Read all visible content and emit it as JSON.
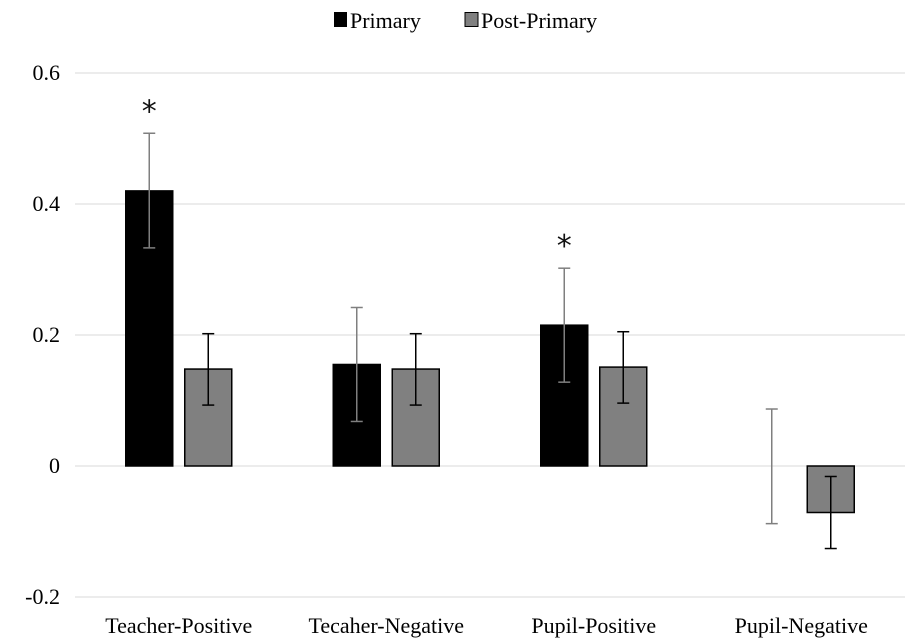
{
  "chart_data": {
    "type": "bar",
    "title": "",
    "xlabel": "",
    "ylabel": "",
    "categories": [
      "Teacher-Positive",
      "Tecaher-Negative",
      "Pupil-Positive",
      "Pupil-Negative"
    ],
    "series": [
      {
        "name": "Primary",
        "color": "#000000",
        "values": [
          0.42,
          0.155,
          0.215,
          0.0
        ],
        "error_low": [
          0.333,
          0.068,
          0.128,
          -0.088
        ],
        "error_high": [
          0.508,
          0.242,
          0.302,
          0.087
        ]
      },
      {
        "name": "Post-Primary",
        "color": "#808080",
        "values": [
          0.148,
          0.148,
          0.151,
          -0.071
        ],
        "error_low": [
          0.093,
          0.093,
          0.096,
          -0.126
        ],
        "error_high": [
          0.202,
          0.202,
          0.205,
          -0.016
        ]
      }
    ],
    "ylim": [
      -0.2,
      0.6
    ],
    "yticks": [
      "-0.2",
      "0",
      "0.2",
      "0.4",
      "0.6"
    ],
    "grid": true,
    "legend_position": "top-center",
    "significance_marker": "*",
    "significant": [
      {
        "category": "Teacher-Positive",
        "series": "Primary"
      },
      {
        "category": "Pupil-Positive",
        "series": "Primary"
      }
    ]
  }
}
